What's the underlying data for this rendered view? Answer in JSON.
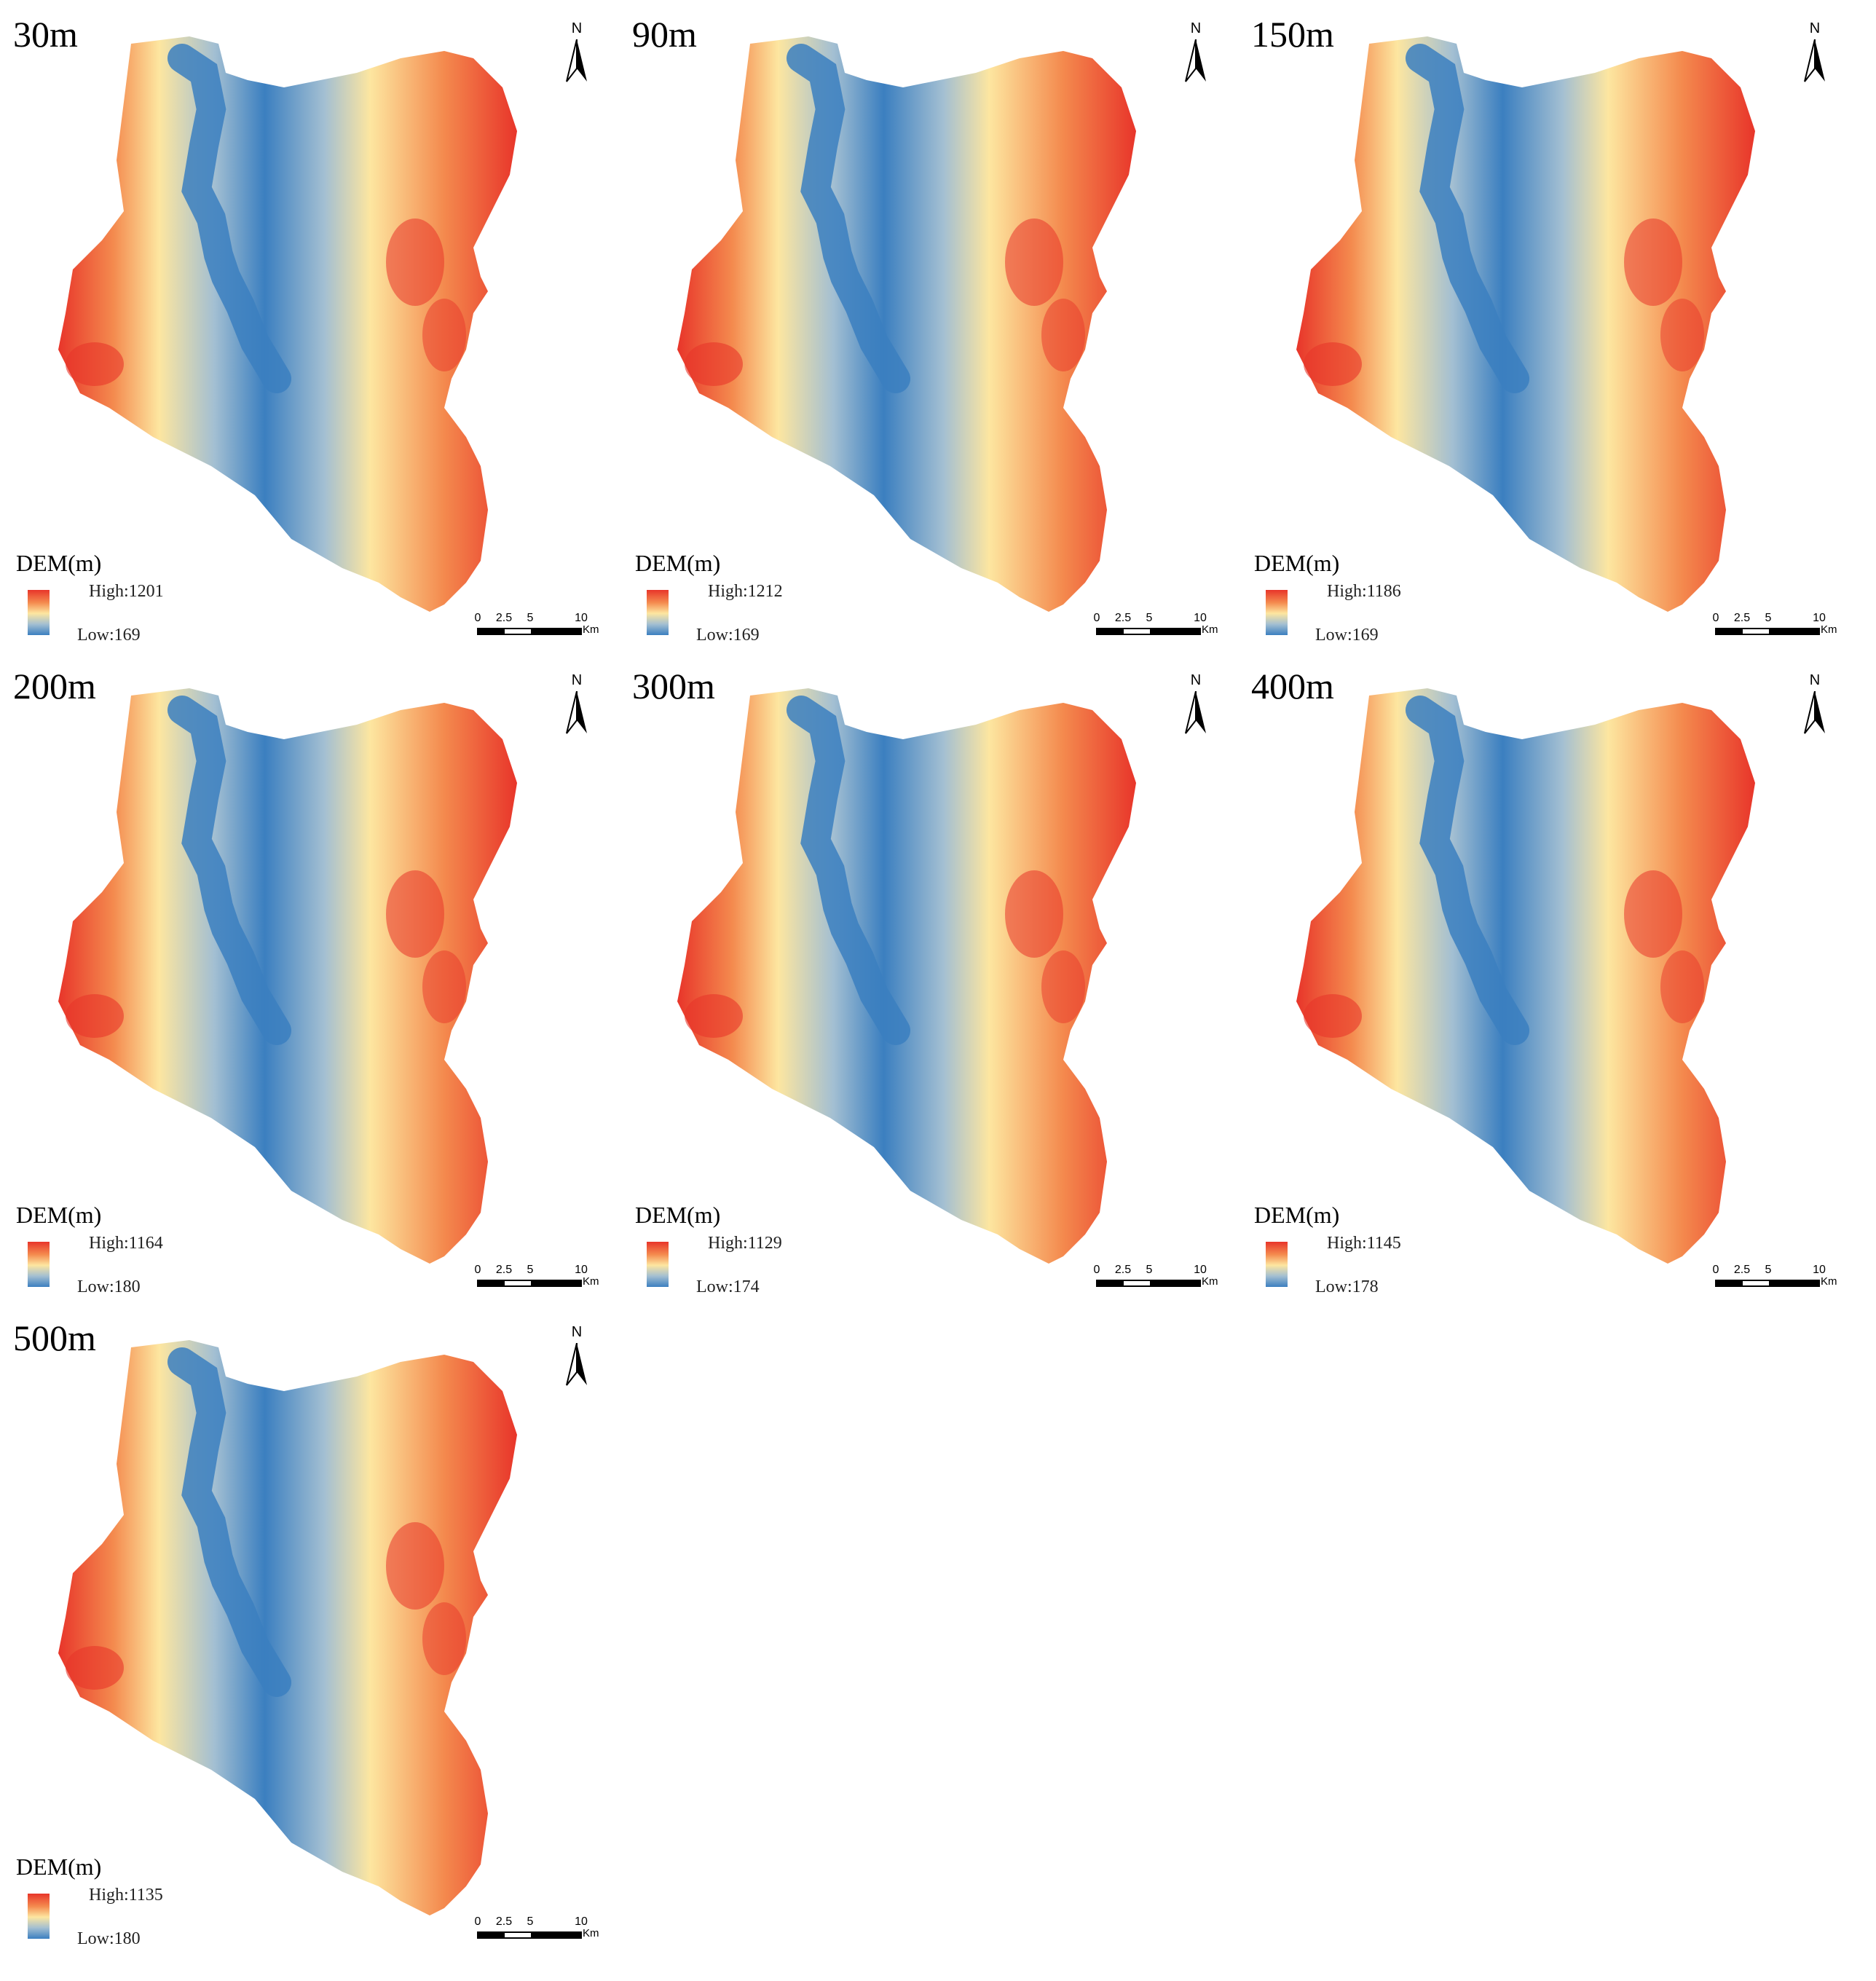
{
  "panels": [
    {
      "title": "30m",
      "legend_title": "DEM(m)",
      "high": "High:1201",
      "low": "Low:169"
    },
    {
      "title": "90m",
      "legend_title": "DEM(m)",
      "high": "High:1212",
      "low": "Low:169"
    },
    {
      "title": "150m",
      "legend_title": "DEM(m)",
      "high": "High:1186",
      "low": "Low:169"
    },
    {
      "title": "200m",
      "legend_title": "DEM(m)",
      "high": "High:1164",
      "low": "Low:180"
    },
    {
      "title": "300m",
      "legend_title": "DEM(m)",
      "high": "High:1129",
      "low": "Low:174"
    },
    {
      "title": "400m",
      "legend_title": "DEM(m)",
      "high": "High:1145",
      "low": "Low:178"
    },
    {
      "title": "500m",
      "legend_title": "DEM(m)",
      "high": "High:1135",
      "low": "Low:180"
    }
  ],
  "north_label": "N",
  "scale": {
    "ticks": [
      "0",
      "2.5",
      "5",
      "10"
    ],
    "unit": "Km"
  },
  "colors": {
    "high": "#e8352a",
    "mid_high": "#f48a4e",
    "mid": "#fde6a0",
    "mid_low": "#a3bfd2",
    "low": "#3b7fc0"
  }
}
